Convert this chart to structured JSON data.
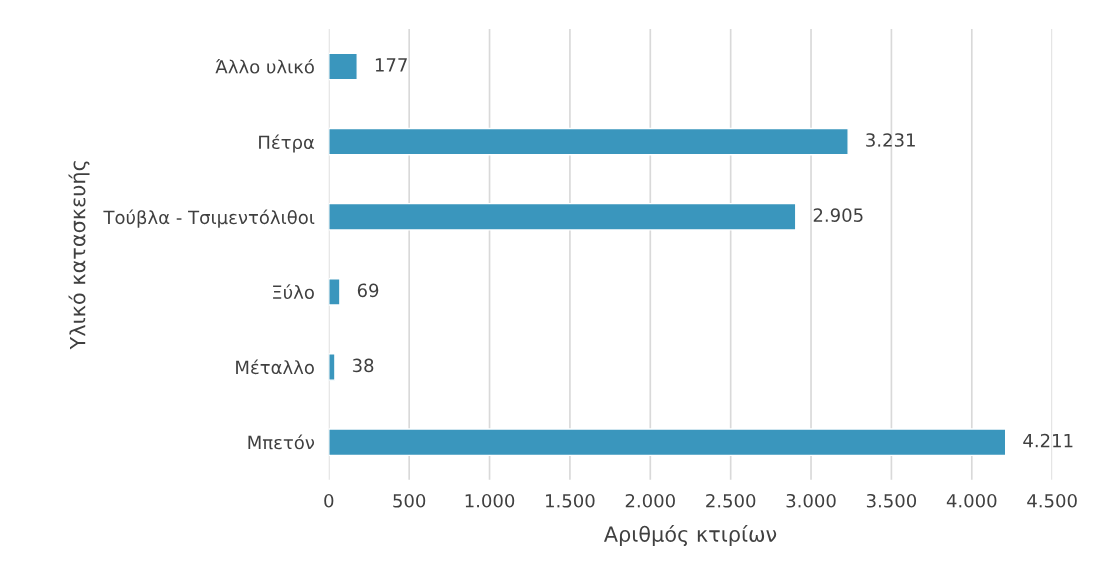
{
  "chart_data": {
    "type": "bar",
    "orientation": "horizontal",
    "xlabel": "Αριθμός κτιρίων",
    "ylabel": "Υλικό κατασκευής",
    "categories": [
      "Άλλο υλικό",
      "Πέτρα",
      "Τούβλα - Τσιμεντόλιθοι",
      "Ξύλο",
      "Μέταλλο",
      "Μπετόν"
    ],
    "values": [
      177,
      3231,
      2905,
      69,
      38,
      4211
    ],
    "value_labels": [
      "177",
      "3.231",
      "2.905",
      "69",
      "38",
      "4.211"
    ],
    "color": "#3a96bd",
    "xlim": [
      0,
      4500
    ],
    "xticks": [
      0,
      500,
      {
        "value": 1000,
        "label": "1.000"
      },
      {
        "value": 1500,
        "label": "1.500"
      },
      {
        "value": 2000,
        "label": "2.000"
      },
      {
        "value": 2500,
        "label": "2.500"
      },
      {
        "value": 3000,
        "label": "3.000"
      },
      {
        "value": 3500,
        "label": "3.500"
      },
      {
        "value": 4000,
        "label": "4.000"
      },
      {
        "value": 4500,
        "label": "4.500"
      }
    ],
    "grid": "x",
    "legend": false
  }
}
